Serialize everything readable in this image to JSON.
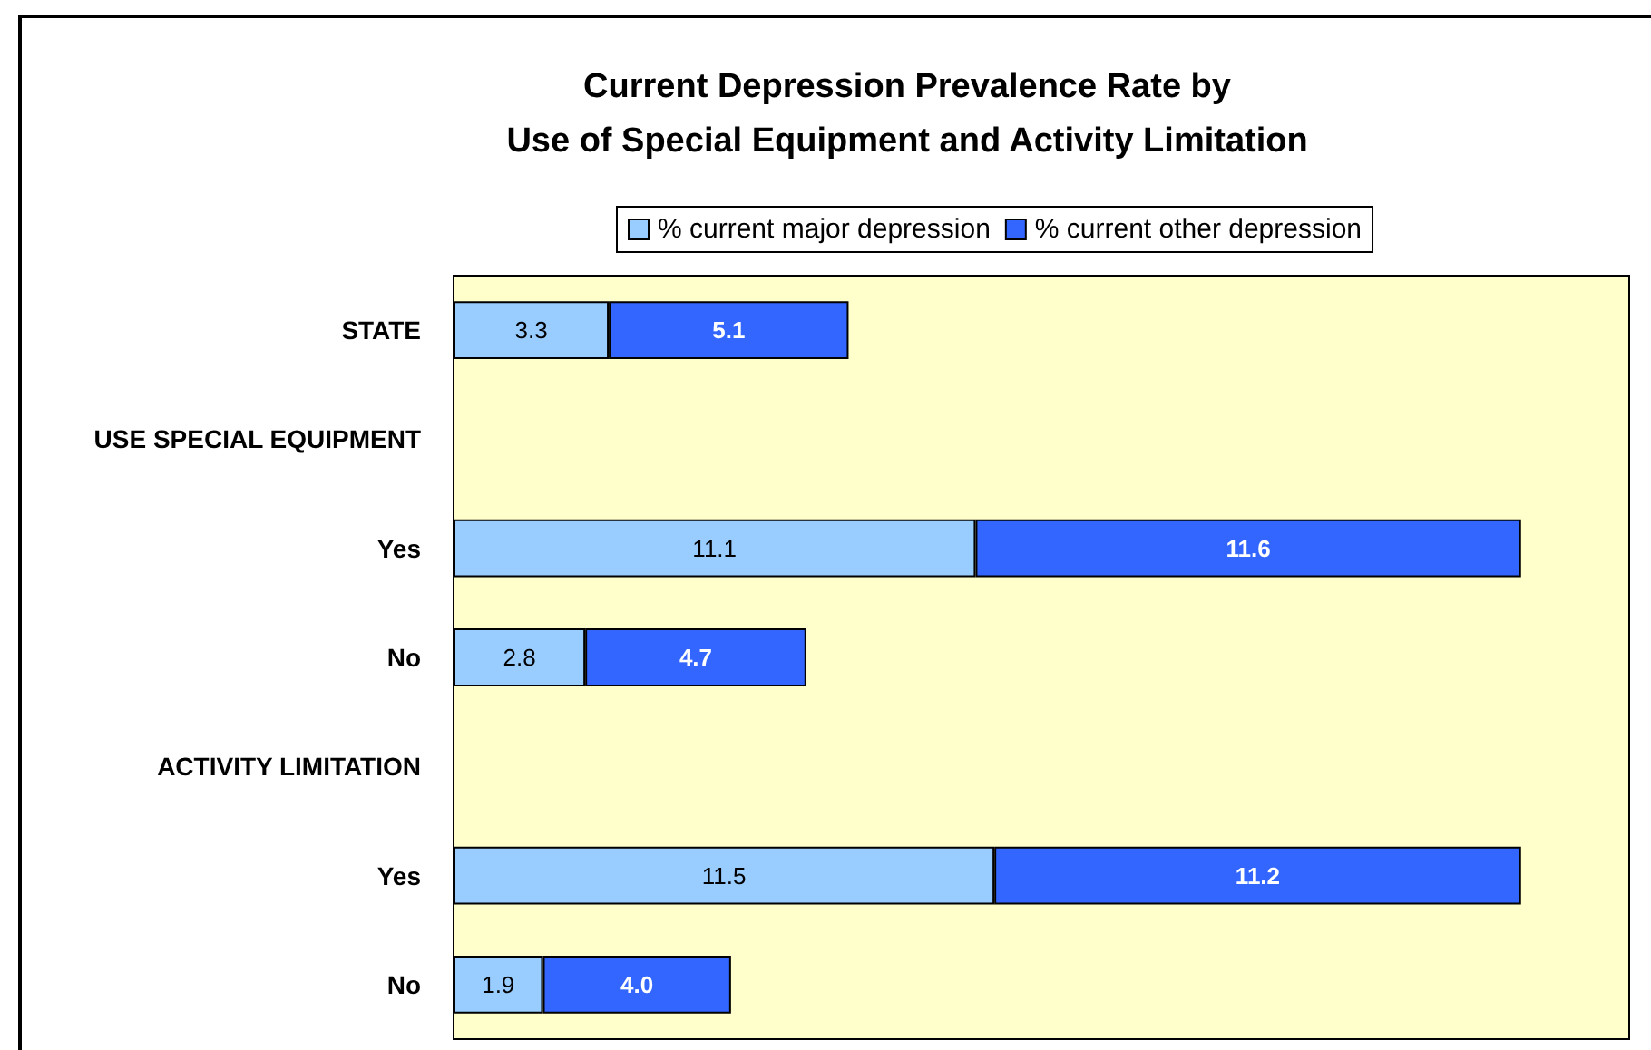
{
  "chart_data": {
    "type": "bar",
    "orientation": "horizontal",
    "stacked": true,
    "title": "Current Depression Prevalence Rate by\nUse of Special Equipment and Activity Limitation",
    "categories": [
      "STATE",
      "USE SPECIAL EQUIPMENT",
      "Yes",
      "No",
      "ACTIVITY LIMITATION",
      "Yes",
      "No"
    ],
    "series": [
      {
        "name": "% current major depression",
        "color": "#99ccff",
        "values": [
          3.3,
          null,
          11.1,
          2.8,
          null,
          11.5,
          1.9
        ],
        "value_labels": [
          "3.3",
          null,
          "11.1",
          "2.8",
          null,
          "11.5",
          "1.9"
        ]
      },
      {
        "name": "% current other depression",
        "color": "#3366ff",
        "values": [
          5.1,
          null,
          11.6,
          4.7,
          null,
          11.2,
          4.0
        ],
        "value_labels": [
          "5.1",
          null,
          "11.6",
          "4.7",
          null,
          "11.2",
          "4.0"
        ]
      }
    ],
    "xlim": [
      0,
      25
    ],
    "legend": "top",
    "grid": false,
    "tick_labels": "y"
  }
}
